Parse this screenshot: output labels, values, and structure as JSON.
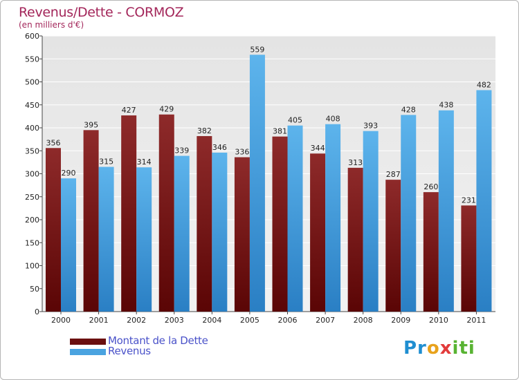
{
  "header": {
    "title": "Revenus/Dette - CORMOZ",
    "subtitle": "(en milliers d'€)"
  },
  "colors": {
    "title": "#a3265a",
    "dette": "#7a1a1a",
    "revenus": "#4aa3e0",
    "legend_text": "#4a52c9"
  },
  "chart_data": {
    "type": "bar",
    "title": "Revenus/Dette - CORMOZ",
    "subtitle": "(en milliers d'€)",
    "categories": [
      "2000",
      "2001",
      "2002",
      "2003",
      "2004",
      "2005",
      "2006",
      "2007",
      "2008",
      "2009",
      "2010",
      "2011"
    ],
    "series": [
      {
        "name": "Montant de la Dette",
        "values": [
          356,
          395,
          427,
          429,
          382,
          336,
          381,
          344,
          313,
          287,
          260,
          231
        ]
      },
      {
        "name": "Revenus",
        "values": [
          290,
          315,
          314,
          339,
          346,
          559,
          405,
          408,
          393,
          428,
          438,
          482
        ]
      }
    ],
    "yticks": [
      0,
      50,
      100,
      150,
      200,
      250,
      300,
      350,
      400,
      450,
      500,
      550,
      600
    ],
    "ylim": [
      0,
      600
    ],
    "grid": true,
    "legend_position": "bottom-left"
  },
  "legend": {
    "items": [
      "Montant de la Dette",
      "Revenus"
    ]
  },
  "logo": {
    "parts": [
      "Pr",
      "o",
      "x",
      "iti"
    ]
  }
}
